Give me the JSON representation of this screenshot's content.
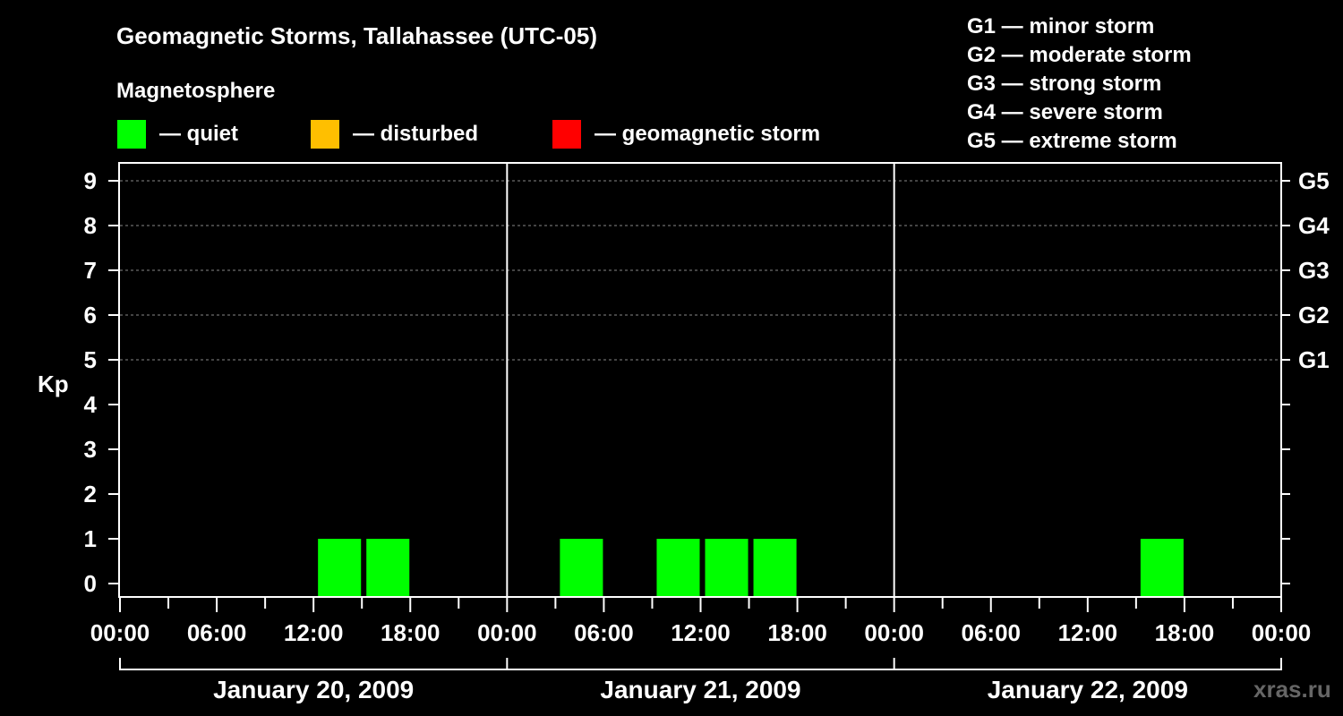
{
  "chart_data": {
    "type": "bar",
    "title": "Geomagnetic Storms, Tallahassee (UTC-05)",
    "ylabel": "Kp",
    "ylim": [
      0,
      9
    ],
    "y_ticks": [
      0,
      1,
      2,
      3,
      4,
      5,
      6,
      7,
      8,
      9
    ],
    "grid": "horizontal dashed at Kp 5–9",
    "legend": {
      "title": "Magnetosphere",
      "entries": [
        {
          "label": "— quiet",
          "color": "#00ff00"
        },
        {
          "label": "— disturbed",
          "color": "#ffbf00"
        },
        {
          "label": "— geomagnetic storm",
          "color": "#ff0000"
        }
      ]
    },
    "storm_scale": [
      {
        "level": "G1",
        "label": "G1 — minor storm",
        "kp": 5
      },
      {
        "level": "G2",
        "label": "G2 — moderate storm",
        "kp": 6
      },
      {
        "level": "G3",
        "label": "G3 — strong storm",
        "kp": 7
      },
      {
        "level": "G4",
        "label": "G4 — severe storm",
        "kp": 8
      },
      {
        "level": "G5",
        "label": "G5 — extreme storm",
        "kp": 9
      }
    ],
    "x_tick_labels": [
      "00:00",
      "06:00",
      "12:00",
      "18:00",
      "00:00",
      "06:00",
      "12:00",
      "18:00",
      "00:00",
      "06:00",
      "12:00",
      "18:00",
      "00:00"
    ],
    "days": [
      "January 20, 2009",
      "January 21, 2009",
      "January 22, 2009"
    ],
    "bar_interval_hours": 3,
    "bars": [
      {
        "day": "January 20, 2009",
        "start": "12:00",
        "kp": 1,
        "status": "quiet"
      },
      {
        "day": "January 20, 2009",
        "start": "15:00",
        "kp": 1,
        "status": "quiet"
      },
      {
        "day": "January 21, 2009",
        "start": "03:00",
        "kp": 1,
        "status": "quiet"
      },
      {
        "day": "January 21, 2009",
        "start": "09:00",
        "kp": 1,
        "status": "quiet"
      },
      {
        "day": "January 21, 2009",
        "start": "12:00",
        "kp": 1,
        "status": "quiet"
      },
      {
        "day": "January 21, 2009",
        "start": "15:00",
        "kp": 1,
        "status": "quiet"
      },
      {
        "day": "January 22, 2009",
        "start": "15:00",
        "kp": 1,
        "status": "quiet"
      }
    ],
    "colors": {
      "quiet": "#00ff00",
      "disturbed": "#ffbf00",
      "storm": "#ff0000"
    },
    "watermark": "xras.ru"
  }
}
